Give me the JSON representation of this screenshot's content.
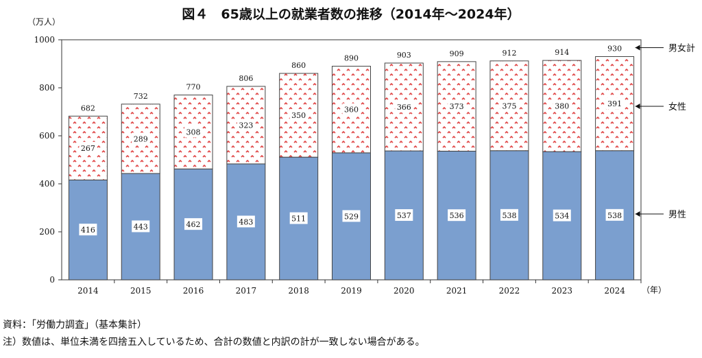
{
  "chart_data": {
    "type": "bar",
    "stacked": true,
    "title": "図４　65歳以上の就業者数の推移（2014年～2024年）",
    "ylabel": "（万人）",
    "xlabel": "（年）",
    "ylim": [
      0,
      1000
    ],
    "yticks": [
      0,
      200,
      400,
      600,
      800,
      1000
    ],
    "categories": [
      "2014",
      "2015",
      "2016",
      "2017",
      "2018",
      "2019",
      "2020",
      "2021",
      "2022",
      "2023",
      "2024"
    ],
    "series": [
      {
        "name": "男性",
        "color": "#7b9fcf",
        "values": [
          416,
          443,
          462,
          483,
          511,
          529,
          537,
          536,
          538,
          534,
          538
        ]
      },
      {
        "name": "女性",
        "color": "#e05050",
        "pattern": "red-chevrons",
        "values": [
          267,
          289,
          308,
          323,
          350,
          360,
          366,
          373,
          375,
          380,
          391
        ]
      }
    ],
    "totals_label": "男女計",
    "totals": [
      682,
      732,
      770,
      806,
      860,
      890,
      903,
      909,
      912,
      914,
      930
    ],
    "legend": "right",
    "grid": false
  },
  "notes": {
    "source": "資料：「労働力調査」（基本集計）",
    "note": "注）数値は、単位未満を四捨五入しているため、合計の数値と内訳の計が一致しない場合がある。"
  }
}
